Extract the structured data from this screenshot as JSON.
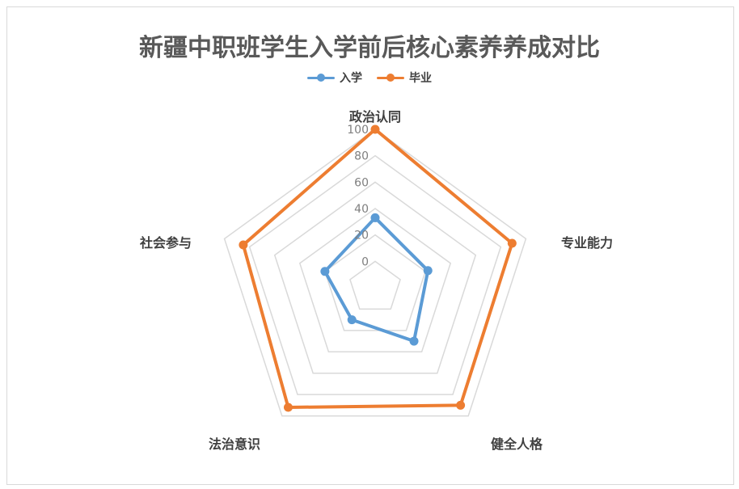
{
  "chart_data": {
    "type": "radar",
    "title": "新疆中职班学生入学前后核心素养养成对比",
    "axes": [
      "政治认同",
      "专业能力",
      "健全人格",
      "法治意识",
      "社会参与"
    ],
    "ticks": [
      "0",
      "20",
      "40",
      "60",
      "80",
      "100"
    ],
    "rmin": -20,
    "rmax": 100,
    "series": [
      {
        "name": "入学",
        "values": [
          33,
          22,
          30,
          10,
          20
        ],
        "color": "#5b9bd5"
      },
      {
        "name": "毕业",
        "values": [
          100,
          89,
          90,
          92,
          85
        ],
        "color": "#ed7d31"
      }
    ],
    "legend": "top",
    "grid_color": "#d9d9d9"
  }
}
